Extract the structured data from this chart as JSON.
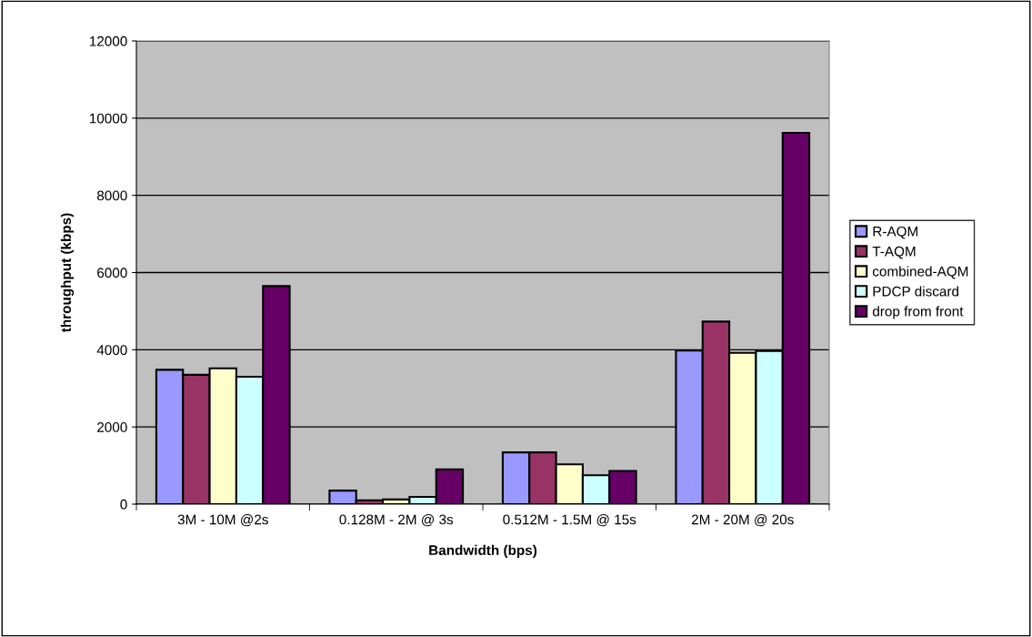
{
  "chart_data": {
    "type": "bar",
    "xlabel": "Bandwidth (bps)",
    "ylabel": "throughput (kbps)",
    "categories": [
      "3M - 10M @2s",
      "0.128M - 2M @ 3s",
      "0.512M - 1.5M @ 15s",
      "2M - 20M @ 20s"
    ],
    "series": [
      {
        "name": "R-AQM",
        "color": "#9999ff",
        "values": [
          3480,
          350,
          1340,
          3980
        ]
      },
      {
        "name": "T-AQM",
        "color": "#993366",
        "values": [
          3350,
          100,
          1340,
          4730
        ]
      },
      {
        "name": "combined-AQM",
        "color": "#ffffcc",
        "values": [
          3520,
          120,
          1030,
          3920
        ]
      },
      {
        "name": "PDCP discard",
        "color": "#ccffff",
        "values": [
          3300,
          190,
          750,
          3970
        ]
      },
      {
        "name": "drop from front",
        "color": "#660066",
        "values": [
          5650,
          900,
          860,
          9620
        ]
      }
    ],
    "ylim": [
      0,
      12000
    ],
    "yticks": [
      0,
      2000,
      4000,
      6000,
      8000,
      10000,
      12000
    ],
    "grid": "y",
    "legend": "right"
  }
}
